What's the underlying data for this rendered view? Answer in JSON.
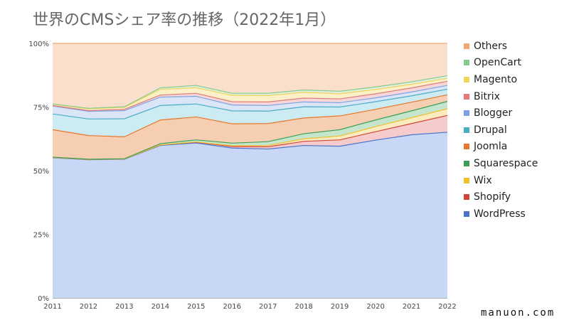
{
  "chart_data": {
    "type": "area",
    "stacked": true,
    "title": "世界のCMSシェア率の推移（2022年1月）",
    "x": [
      "2011",
      "2012",
      "2013",
      "2014",
      "2015",
      "2016",
      "2017",
      "2018",
      "2019",
      "2020",
      "2021",
      "2022"
    ],
    "yticks": [
      "0%",
      "25%",
      "50%",
      "75%",
      "100%"
    ],
    "ylim": [
      0,
      100
    ],
    "grid": true,
    "legend_position": "right",
    "series": [
      {
        "name": "WordPress",
        "color": "#4a74c9",
        "fill": "#c8d7f6",
        "values": [
          55.1,
          54.3,
          54.5,
          59.9,
          60.9,
          58.9,
          58.5,
          59.9,
          59.6,
          62.0,
          64.1,
          65.1
        ]
      },
      {
        "name": "Shopify",
        "color": "#d2453b",
        "fill": "#f5cccb",
        "values": [
          0.1,
          0.1,
          0.1,
          0.2,
          0.3,
          0.6,
          0.9,
          1.6,
          2.5,
          3.3,
          4.4,
          6.6
        ]
      },
      {
        "name": "Wix",
        "color": "#f0c02f",
        "fill": "#fbecc0",
        "values": [
          0.0,
          0.0,
          0.0,
          0.0,
          0.1,
          0.3,
          0.5,
          1.0,
          1.5,
          2.0,
          2.3,
          2.6
        ]
      },
      {
        "name": "Squarespace",
        "color": "#3f9e56",
        "fill": "#c5e6cc",
        "values": [
          0.1,
          0.1,
          0.1,
          0.5,
          0.8,
          1.0,
          1.5,
          2.0,
          2.5,
          2.6,
          2.7,
          2.9
        ]
      },
      {
        "name": "Joomla",
        "color": "#e8762b",
        "fill": "#f6cfb3",
        "values": [
          10.8,
          9.3,
          8.6,
          9.3,
          9.0,
          7.6,
          7.1,
          6.2,
          5.4,
          4.2,
          3.4,
          2.6
        ]
      },
      {
        "name": "Drupal",
        "color": "#4bacc6",
        "fill": "#cdebf2",
        "values": [
          6.2,
          6.5,
          7.1,
          5.7,
          5.1,
          5.1,
          4.9,
          4.4,
          3.5,
          3.0,
          2.5,
          2.2
        ]
      },
      {
        "name": "Blogger",
        "color": "#7ea1e6",
        "fill": "#dbe5f8",
        "values": [
          3.1,
          3.0,
          3.2,
          3.3,
          3.0,
          2.3,
          2.2,
          1.9,
          1.7,
          1.5,
          1.5,
          1.5
        ]
      },
      {
        "name": "Bitrix",
        "color": "#e07b7b",
        "fill": "#f6d6d6",
        "values": [
          0.2,
          0.3,
          0.5,
          0.8,
          1.2,
          1.3,
          1.4,
          1.5,
          1.5,
          1.6,
          1.6,
          1.6
        ]
      },
      {
        "name": "Magento",
        "color": "#f2d35e",
        "fill": "#fbf0c8",
        "values": [
          0.5,
          0.7,
          0.8,
          2.2,
          2.2,
          2.5,
          2.5,
          2.3,
          2.0,
          1.7,
          1.4,
          1.2
        ]
      },
      {
        "name": "OpenCart",
        "color": "#87c98c",
        "fill": "#dcf0dd",
        "values": [
          0.1,
          0.2,
          0.2,
          0.6,
          0.9,
          0.8,
          0.9,
          0.9,
          1.0,
          1.0,
          1.0,
          1.0
        ]
      },
      {
        "name": "Others",
        "color": "#f2a874",
        "fill": "#fae0cc",
        "values": [
          23.8,
          25.5,
          24.9,
          17.5,
          16.5,
          19.6,
          19.6,
          18.3,
          18.8,
          17.1,
          15.1,
          12.7
        ]
      }
    ]
  },
  "watermark": "manuon.com"
}
